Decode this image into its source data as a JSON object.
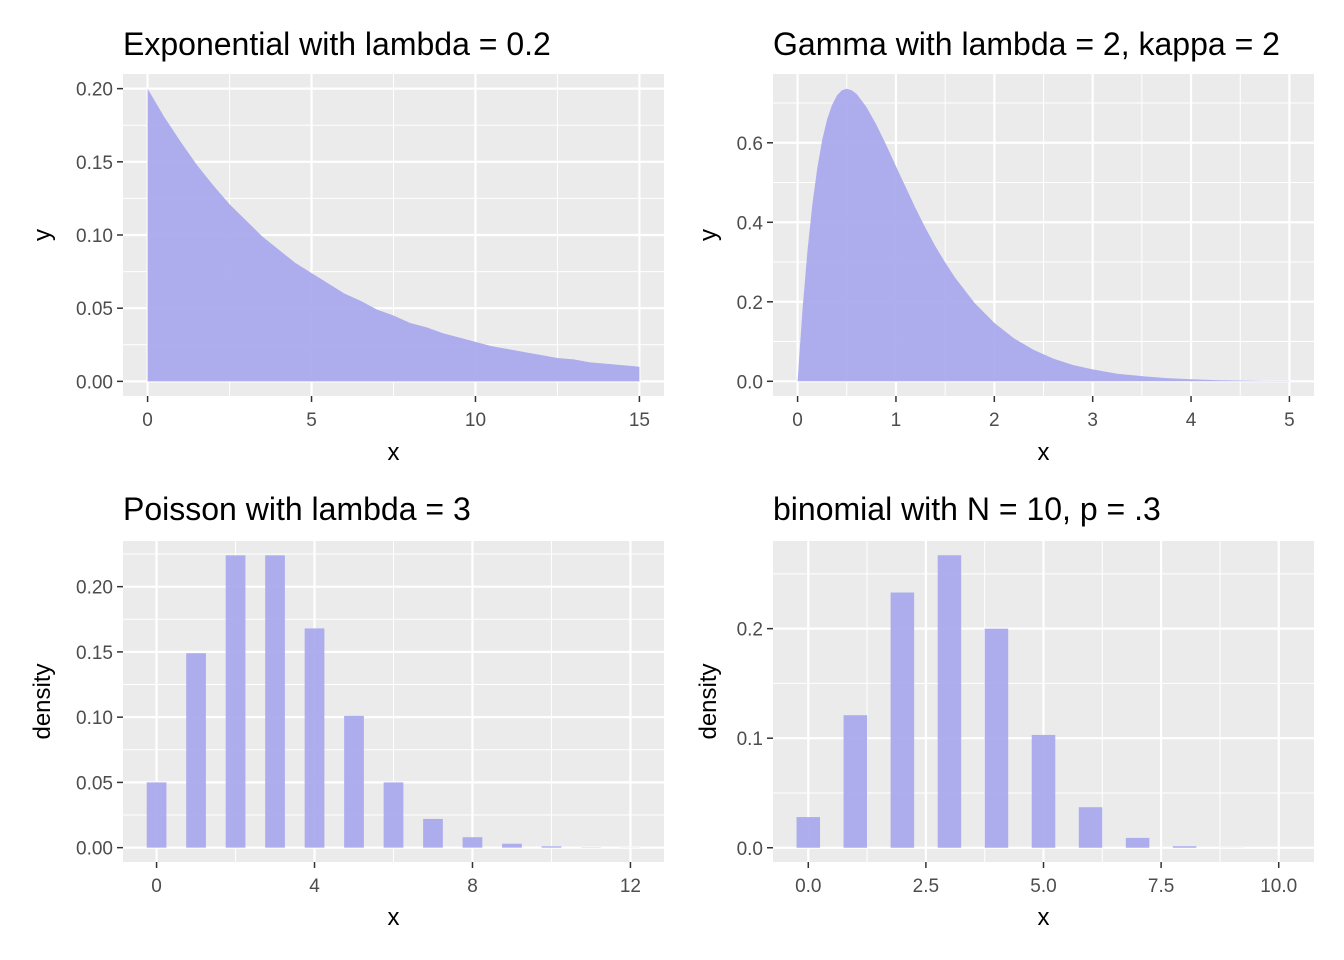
{
  "chart_data": [
    {
      "type": "area",
      "title": "Exponential with lambda = 0.2",
      "xlabel": "x",
      "ylabel": "y",
      "xlim": [
        -0.75,
        15.75
      ],
      "ylim": [
        -0.01,
        0.21
      ],
      "x_ticks": [
        0,
        5,
        10,
        15
      ],
      "x_tick_labels": [
        "0",
        "5",
        "10",
        "15"
      ],
      "y_ticks": [
        0,
        0.05,
        0.1,
        0.15,
        0.2
      ],
      "y_tick_labels": [
        "0.00",
        "0.05",
        "0.10",
        "0.15",
        "0.20"
      ],
      "grid": true,
      "fill_color": "#aaaaee",
      "x": [
        0,
        0.5,
        1,
        1.5,
        2,
        2.5,
        3,
        3.5,
        4,
        4.5,
        5,
        5.5,
        6,
        6.5,
        7,
        7.5,
        8,
        8.5,
        9,
        9.5,
        10,
        10.5,
        11,
        11.5,
        12,
        12.5,
        13,
        13.5,
        14,
        14.5,
        15
      ],
      "y": [
        0.2,
        0.181,
        0.164,
        0.148,
        0.134,
        0.121,
        0.11,
        0.099,
        0.09,
        0.081,
        0.074,
        0.067,
        0.06,
        0.055,
        0.049,
        0.045,
        0.04,
        0.037,
        0.033,
        0.03,
        0.027,
        0.024,
        0.022,
        0.02,
        0.018,
        0.016,
        0.015,
        0.013,
        0.012,
        0.011,
        0.01
      ]
    },
    {
      "type": "area",
      "title": "Gamma with lambda = 2, kappa = 2",
      "xlabel": "x",
      "ylabel": "y",
      "xlim": [
        -0.25,
        5.25
      ],
      "ylim": [
        -0.037,
        0.773
      ],
      "x_ticks": [
        0,
        1,
        2,
        3,
        4,
        5
      ],
      "x_tick_labels": [
        "0",
        "1",
        "2",
        "3",
        "4",
        "5"
      ],
      "y_ticks": [
        0,
        0.2,
        0.4,
        0.6
      ],
      "y_tick_labels": [
        "0.0",
        "0.2",
        "0.4",
        "0.6"
      ],
      "grid": true,
      "fill_color": "#aaaaee",
      "x": [
        0,
        0.05,
        0.1,
        0.15,
        0.2,
        0.25,
        0.3,
        0.35,
        0.4,
        0.45,
        0.5,
        0.55,
        0.6,
        0.7,
        0.8,
        0.9,
        1.0,
        1.1,
        1.2,
        1.3,
        1.4,
        1.5,
        1.6,
        1.8,
        2.0,
        2.2,
        2.4,
        2.6,
        2.8,
        3.0,
        3.25,
        3.5,
        3.75,
        4.0,
        4.25,
        4.5,
        4.75,
        5.0
      ],
      "y": [
        0,
        0.181,
        0.327,
        0.445,
        0.536,
        0.607,
        0.659,
        0.695,
        0.719,
        0.732,
        0.736,
        0.732,
        0.723,
        0.69,
        0.646,
        0.595,
        0.541,
        0.488,
        0.435,
        0.386,
        0.34,
        0.299,
        0.261,
        0.197,
        0.147,
        0.108,
        0.079,
        0.057,
        0.041,
        0.03,
        0.019,
        0.013,
        0.008,
        0.005,
        0.003,
        0.002,
        0.001,
        0.001
      ]
    },
    {
      "type": "bar",
      "title": "Poisson with lambda = 3",
      "xlabel": "x",
      "ylabel": "density",
      "xlim": [
        -0.85,
        12.85
      ],
      "ylim": [
        -0.011,
        0.235
      ],
      "x_ticks": [
        0,
        4,
        8,
        12
      ],
      "x_tick_labels": [
        "0",
        "4",
        "8",
        "12"
      ],
      "y_ticks": [
        0,
        0.05,
        0.1,
        0.15,
        0.2
      ],
      "y_tick_labels": [
        "0.00",
        "0.05",
        "0.10",
        "0.15",
        "0.20"
      ],
      "grid": true,
      "fill_color": "#aaaaee",
      "bar_width": 0.5,
      "x": [
        0,
        1,
        2,
        3,
        4,
        5,
        6,
        7,
        8,
        9,
        10,
        11,
        12
      ],
      "values": [
        0.05,
        0.149,
        0.224,
        0.224,
        0.168,
        0.101,
        0.05,
        0.022,
        0.008,
        0.003,
        0.001,
        0.0002,
        0.0001
      ]
    },
    {
      "type": "bar",
      "title": "binomial with N = 10, p = .3",
      "xlabel": "x",
      "ylabel": "density",
      "xlim": [
        -0.75,
        10.75
      ],
      "ylim": [
        -0.013,
        0.28
      ],
      "x_ticks": [
        0,
        2.5,
        5,
        7.5,
        10
      ],
      "x_tick_labels": [
        "0.0",
        "2.5",
        "5.0",
        "7.5",
        "10.0"
      ],
      "y_ticks": [
        0,
        0.1,
        0.2
      ],
      "y_tick_labels": [
        "0.0",
        "0.1",
        "0.2"
      ],
      "grid": true,
      "fill_color": "#aaaaee",
      "bar_width": 0.5,
      "x": [
        0,
        1,
        2,
        3,
        4,
        5,
        6,
        7,
        8,
        9,
        10
      ],
      "values": [
        0.028,
        0.121,
        0.233,
        0.267,
        0.2,
        0.103,
        0.037,
        0.009,
        0.0014,
        0.0001,
        0.0
      ]
    }
  ]
}
